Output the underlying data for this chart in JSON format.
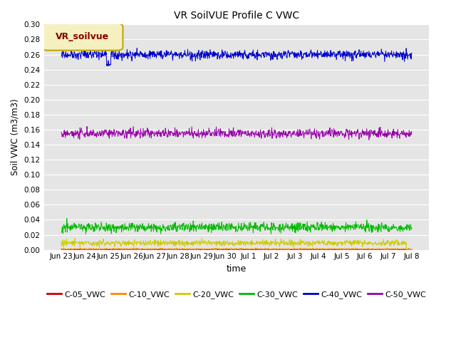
{
  "title": "VR SoilVUE Profile C VWC",
  "xlabel": "time",
  "ylabel": "Soil VWC (m3/m3)",
  "legend_label": "VR_soilvue",
  "series": {
    "C-05_VWC": {
      "mean": 0.0005,
      "noise": 0.0003,
      "color": "#cc0000"
    },
    "C-10_VWC": {
      "mean": 0.001,
      "noise": 0.0005,
      "color": "#ff8800"
    },
    "C-20_VWC": {
      "mean": 0.009,
      "noise": 0.002,
      "color": "#cccc00"
    },
    "C-30_VWC": {
      "mean": 0.03,
      "noise": 0.003,
      "color": "#00bb00"
    },
    "C-40_VWC": {
      "mean": 0.26,
      "noise": 0.003,
      "color": "#0000cc"
    },
    "C-50_VWC": {
      "mean": 0.155,
      "noise": 0.003,
      "color": "#9900aa"
    }
  },
  "ylim": [
    0.0,
    0.3
  ],
  "yticks": [
    0.0,
    0.02,
    0.04,
    0.06,
    0.08,
    0.1,
    0.12,
    0.14,
    0.16,
    0.18,
    0.2,
    0.22,
    0.24,
    0.26,
    0.28,
    0.3
  ],
  "n_points": 960,
  "bg_color": "#e5e5e5",
  "legend_bg": "#f5f0c0",
  "legend_border": "#bbaa00",
  "legend_text_color": "#880000",
  "x_tick_labels": [
    "Jun 23",
    "Jun 24",
    "Jun 25",
    "Jun 26",
    "Jun 27",
    "Jun 28",
    "Jun 29",
    "Jun 30",
    "Jul 1",
    "Jul 2",
    "Jul 3",
    "Jul 4",
    "Jul 5",
    "Jul 6",
    "Jul 7",
    "Jul 8"
  ],
  "grid_color": "#ffffff"
}
